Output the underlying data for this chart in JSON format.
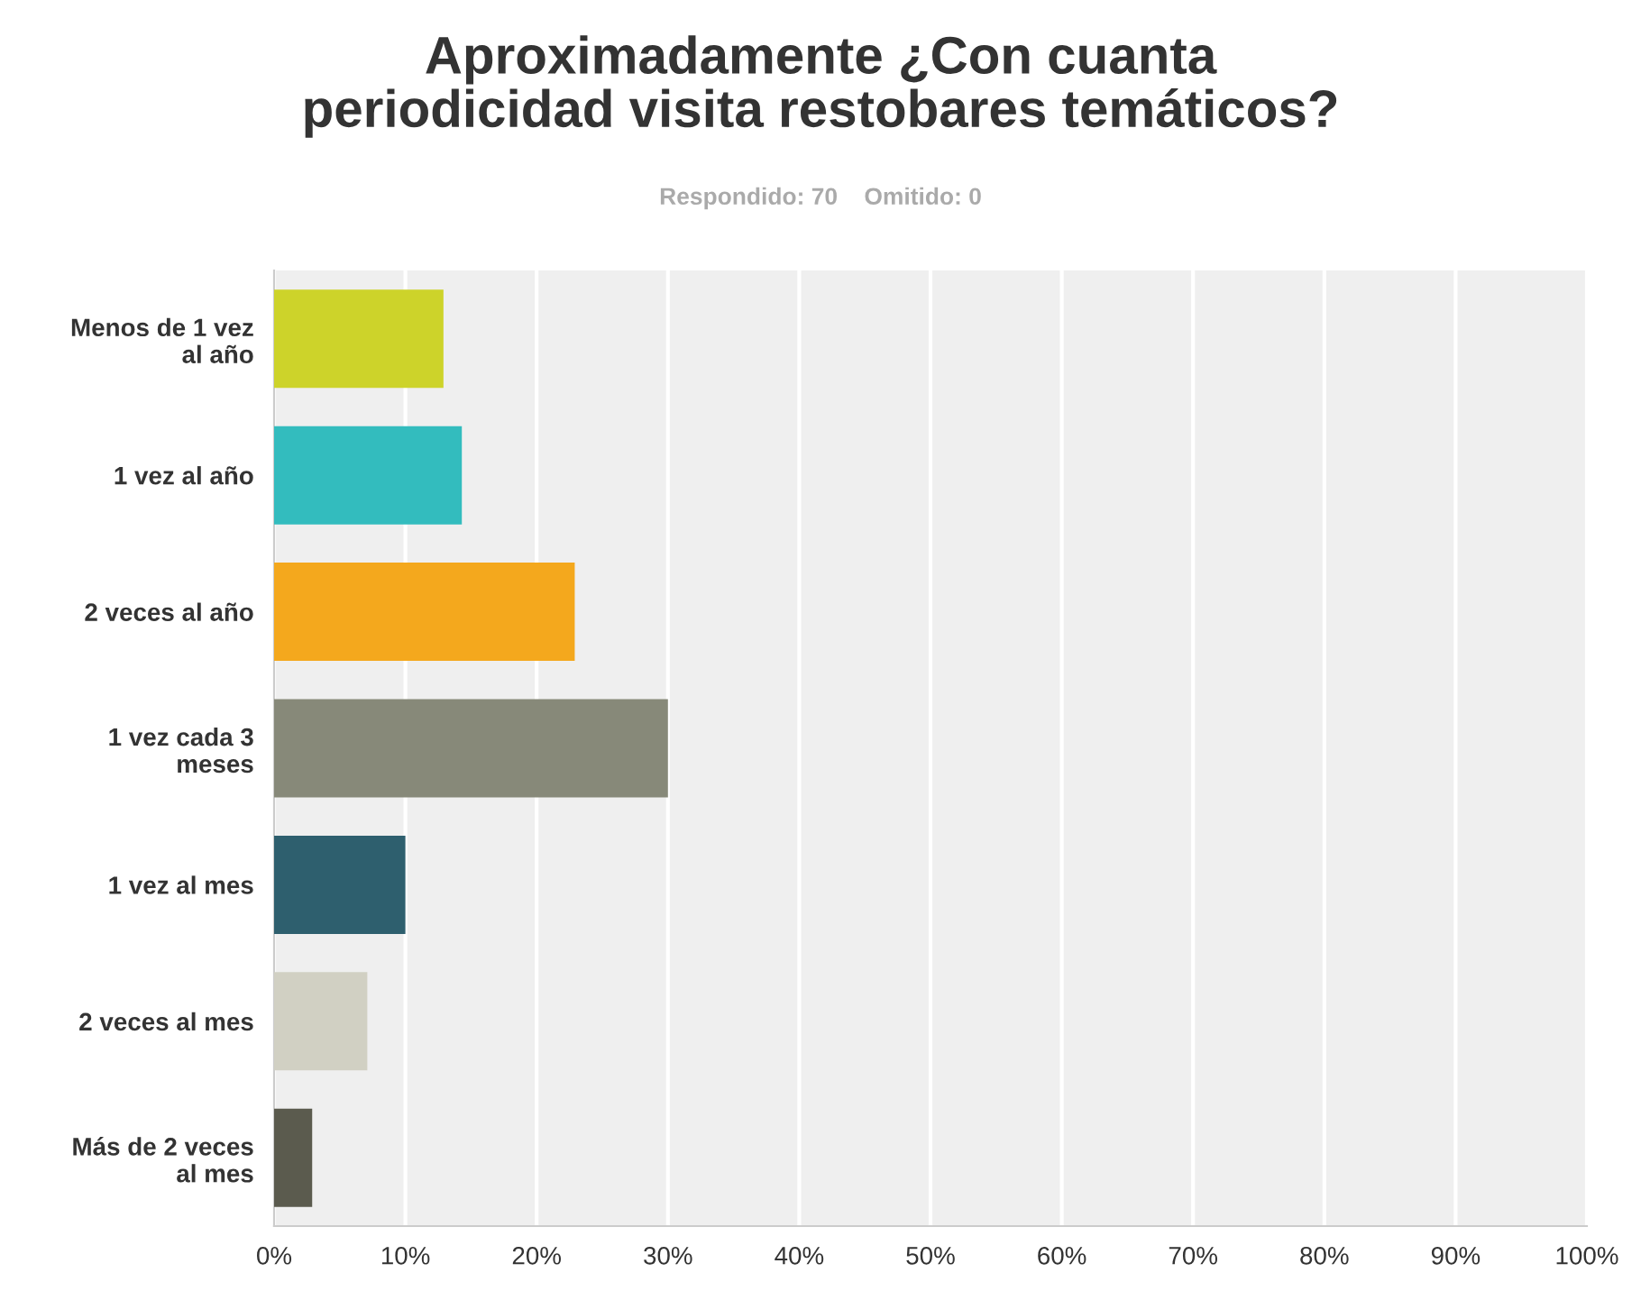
{
  "chart_data": {
    "type": "bar",
    "orientation": "horizontal",
    "title": "Aproximadamente ¿Con cuanta\nperiodicidad visita restobares temáticos?",
    "subtitle": "Respondido: 70    Omitido: 0",
    "categories": [
      "Menos de 1 vez\nal año",
      "1 vez al año",
      "2 veces al año",
      "1 vez cada 3\nmeses",
      "1 vez al mes",
      "2 veces al mes",
      "Más de 2 veces\nal mes"
    ],
    "values": [
      12.9,
      14.3,
      22.9,
      30,
      10,
      7.1,
      2.9
    ],
    "colors": [
      "#cdd32a",
      "#33bcbe",
      "#f4a81d",
      "#878979",
      "#2e5f6e",
      "#d1d0c3",
      "#5b5b4e"
    ],
    "xlim": [
      0,
      100
    ],
    "xticks": [
      {
        "value": 0,
        "label": "0%"
      },
      {
        "value": 10,
        "label": "10%"
      },
      {
        "value": 20,
        "label": "20%"
      },
      {
        "value": 30,
        "label": "30%"
      },
      {
        "value": 40,
        "label": "40%"
      },
      {
        "value": 50,
        "label": "50%"
      },
      {
        "value": 60,
        "label": "60%"
      },
      {
        "value": 70,
        "label": "70%"
      },
      {
        "value": 80,
        "label": "80%"
      },
      {
        "value": 90,
        "label": "90%"
      },
      {
        "value": 100,
        "label": "100%"
      }
    ],
    "grid": "x"
  }
}
